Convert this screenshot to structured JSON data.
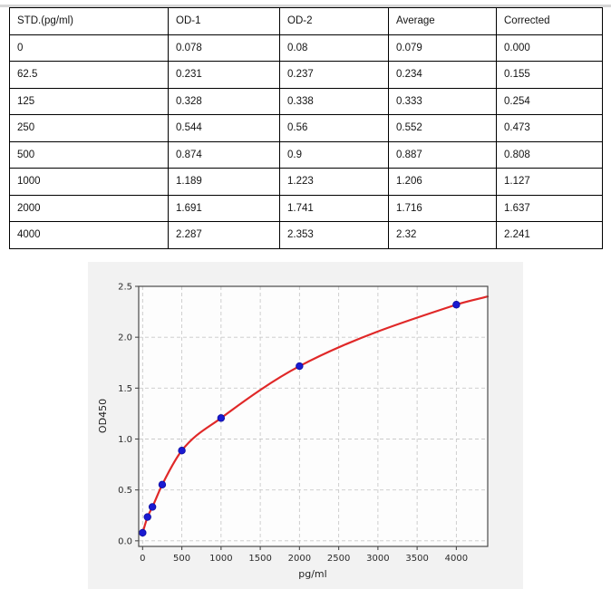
{
  "table": {
    "headers": [
      "STD.(pg/ml)",
      "OD-1",
      "OD-2",
      "Average",
      "Corrected"
    ],
    "rows": [
      [
        "0",
        "0.078",
        "0.08",
        "0.079",
        "0.000"
      ],
      [
        "62.5",
        "0.231",
        "0.237",
        "0.234",
        "0.155"
      ],
      [
        "125",
        "0.328",
        "0.338",
        "0.333",
        "0.254"
      ],
      [
        "250",
        "0.544",
        "0.56",
        "0.552",
        "0.473"
      ],
      [
        "500",
        "0.874",
        "0.9",
        "0.887",
        "0.808"
      ],
      [
        "1000",
        "1.189",
        "1.223",
        "1.206",
        "1.127"
      ],
      [
        "2000",
        "1.691",
        "1.741",
        "1.716",
        "1.637"
      ],
      [
        "4000",
        "2.287",
        "2.353",
        "2.32",
        "2.241"
      ]
    ]
  },
  "chart_data": {
    "type": "scatter",
    "title": "",
    "xlabel": "pg/ml",
    "ylabel": "OD450",
    "x": [
      0,
      62.5,
      125,
      250,
      500,
      1000,
      2000,
      4000
    ],
    "y": [
      0.079,
      0.234,
      0.333,
      0.552,
      0.887,
      1.206,
      1.716,
      2.32
    ],
    "fit_curve": {
      "through_points": true,
      "extend_to_x": 4400,
      "extend_to_y": 2.4
    },
    "xlim": [
      -50,
      4400
    ],
    "ylim": [
      -0.055,
      2.5
    ],
    "xticks": [
      0,
      500,
      1000,
      1500,
      2000,
      2500,
      3000,
      3500,
      4000
    ],
    "xtick_labels": [
      "0",
      "500",
      "1000",
      "1500",
      "2000",
      "2500",
      "3000",
      "3500",
      "4000"
    ],
    "ytick_labels": [
      "0.0",
      "0.5",
      "1.0",
      "1.5",
      "2.0",
      "2.5"
    ],
    "yticks": [
      0.0,
      0.5,
      1.0,
      1.5,
      2.0,
      2.5
    ],
    "grid": true,
    "legend": "none",
    "colors": {
      "point": "#1a1ad1",
      "point_edge": "#0d0da0",
      "curve": "#e02828",
      "grid": "#c9c9c9",
      "spine": "#4a4a4a",
      "plot_bg": "#fdfdfd",
      "figure_bg": "#f2f2f2"
    }
  }
}
